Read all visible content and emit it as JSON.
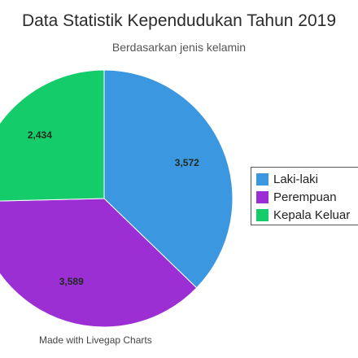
{
  "chart_data": {
    "type": "pie",
    "title": "Data Statistik Kependudukan Tahun 2019",
    "subtitle": "Berdasarkan jenis kelamin",
    "categories": [
      "Laki-laki",
      "Perempuan",
      "Kepala Keluarga"
    ],
    "values": [
      3572,
      3589,
      2434
    ],
    "value_labels": [
      "3,572",
      "3,589",
      "2,434"
    ],
    "colors": [
      "#3b97e0",
      "#9b2fd4",
      "#15cc6b"
    ],
    "legend_labels": [
      "Laki-laki",
      "Perempuan",
      "Kepala Keluar"
    ],
    "legend_position": "right",
    "start_angle_deg": 0,
    "direction": "clockwise"
  },
  "credit": "Made with Livegap Charts"
}
